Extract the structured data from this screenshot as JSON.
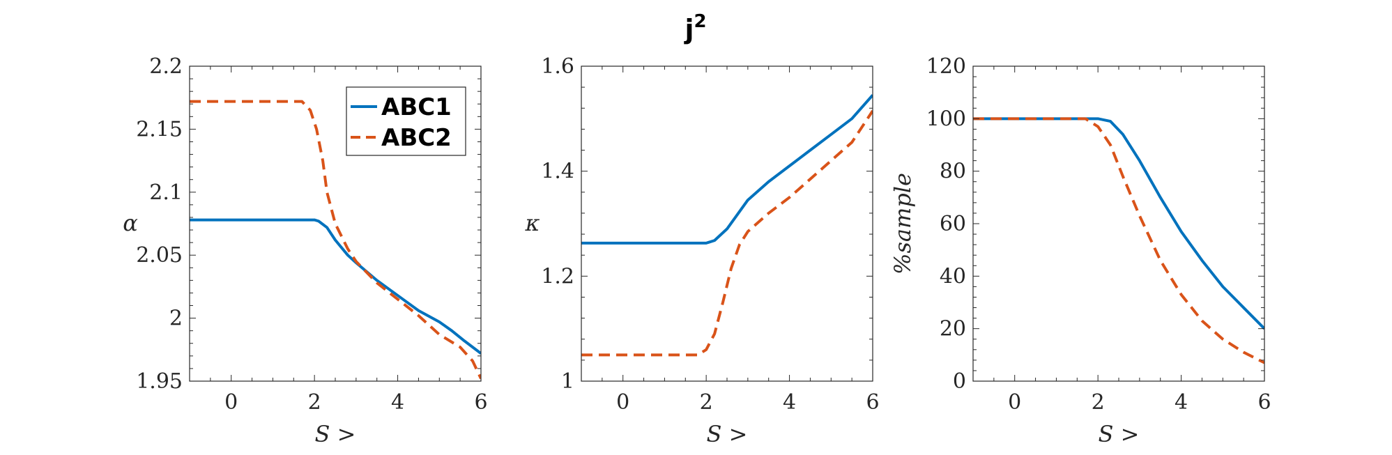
{
  "title": "j",
  "title_superscript": "2",
  "chart_data": [
    {
      "type": "line",
      "xlabel": "S >",
      "ylabel": "α",
      "xlim": [
        -1,
        6
      ],
      "ylim": [
        1.95,
        2.2
      ],
      "xticks": [
        0,
        2,
        4,
        6
      ],
      "yticks": [
        1.95,
        2,
        2.05,
        2.1,
        2.15,
        2.2
      ],
      "ytick_labels": [
        "1.95",
        "2",
        "2.05",
        "2.1",
        "2.15",
        "2.2"
      ],
      "legend": "top-right",
      "series": [
        {
          "name": "ABC1",
          "color": "#0072BD",
          "style": "solid",
          "x": [
            -1,
            0,
            1,
            2,
            2.1,
            2.3,
            2.5,
            2.8,
            3.0,
            3.5,
            4.0,
            4.5,
            5.0,
            5.3,
            5.6,
            6.0
          ],
          "y": [
            2.078,
            2.078,
            2.078,
            2.078,
            2.077,
            2.072,
            2.062,
            2.05,
            2.044,
            2.03,
            2.018,
            2.006,
            1.997,
            1.99,
            1.982,
            1.972
          ]
        },
        {
          "name": "ABC2",
          "color": "#D95319",
          "style": "dashed",
          "x": [
            -1,
            0,
            1,
            1.7,
            1.9,
            2.05,
            2.2,
            2.3,
            2.5,
            2.8,
            3.0,
            3.5,
            4.0,
            4.5,
            5.0,
            5.5,
            5.8,
            6.0
          ],
          "y": [
            2.172,
            2.172,
            2.172,
            2.172,
            2.165,
            2.15,
            2.125,
            2.1,
            2.075,
            2.055,
            2.045,
            2.028,
            2.015,
            2.002,
            1.987,
            1.977,
            1.966,
            1.952
          ]
        }
      ]
    },
    {
      "type": "line",
      "xlabel": "S >",
      "ylabel": "κ",
      "xlim": [
        -1,
        6
      ],
      "ylim": [
        1,
        1.6
      ],
      "xticks": [
        0,
        2,
        4,
        6
      ],
      "yticks": [
        1,
        1.2,
        1.4,
        1.6
      ],
      "ytick_labels": [
        "1",
        "1.2",
        "1.4",
        "1.6"
      ],
      "series": [
        {
          "name": "ABC1",
          "color": "#0072BD",
          "style": "solid",
          "x": [
            -1,
            0,
            1,
            2,
            2.2,
            2.5,
            3.0,
            3.5,
            4.0,
            4.5,
            5.0,
            5.5,
            6.0
          ],
          "y": [
            1.263,
            1.263,
            1.263,
            1.263,
            1.268,
            1.29,
            1.345,
            1.38,
            1.41,
            1.44,
            1.47,
            1.5,
            1.545
          ]
        },
        {
          "name": "ABC2",
          "color": "#D95319",
          "style": "dashed",
          "x": [
            -1,
            0,
            1,
            1.8,
            2.0,
            2.2,
            2.4,
            2.6,
            2.8,
            3.0,
            3.5,
            4.0,
            4.5,
            5.0,
            5.5,
            6.0
          ],
          "y": [
            1.05,
            1.05,
            1.05,
            1.05,
            1.06,
            1.09,
            1.15,
            1.215,
            1.26,
            1.285,
            1.32,
            1.35,
            1.385,
            1.42,
            1.455,
            1.515
          ]
        }
      ]
    },
    {
      "type": "line",
      "xlabel": "S >",
      "ylabel": "%sample",
      "xlim": [
        -1,
        6
      ],
      "ylim": [
        0,
        120
      ],
      "xticks": [
        0,
        2,
        4,
        6
      ],
      "yticks": [
        0,
        20,
        40,
        60,
        80,
        100,
        120
      ],
      "ytick_labels": [
        "0",
        "20",
        "40",
        "60",
        "80",
        "100",
        "120"
      ],
      "series": [
        {
          "name": "ABC1",
          "color": "#0072BD",
          "style": "solid",
          "x": [
            -1,
            0,
            1,
            2,
            2.3,
            2.6,
            3.0,
            3.5,
            4.0,
            4.5,
            5.0,
            5.5,
            6.0
          ],
          "y": [
            100,
            100,
            100,
            100,
            99,
            94,
            84,
            70,
            57,
            46,
            36,
            28,
            20
          ]
        },
        {
          "name": "ABC2",
          "color": "#D95319",
          "style": "dashed",
          "x": [
            -1,
            0,
            1,
            1.7,
            2.0,
            2.3,
            2.6,
            3.0,
            3.5,
            4.0,
            4.5,
            5.0,
            5.5,
            6.0
          ],
          "y": [
            100,
            100,
            100,
            100,
            97,
            90,
            78,
            63,
            46,
            33,
            23,
            16,
            11,
            7
          ]
        }
      ]
    }
  ]
}
